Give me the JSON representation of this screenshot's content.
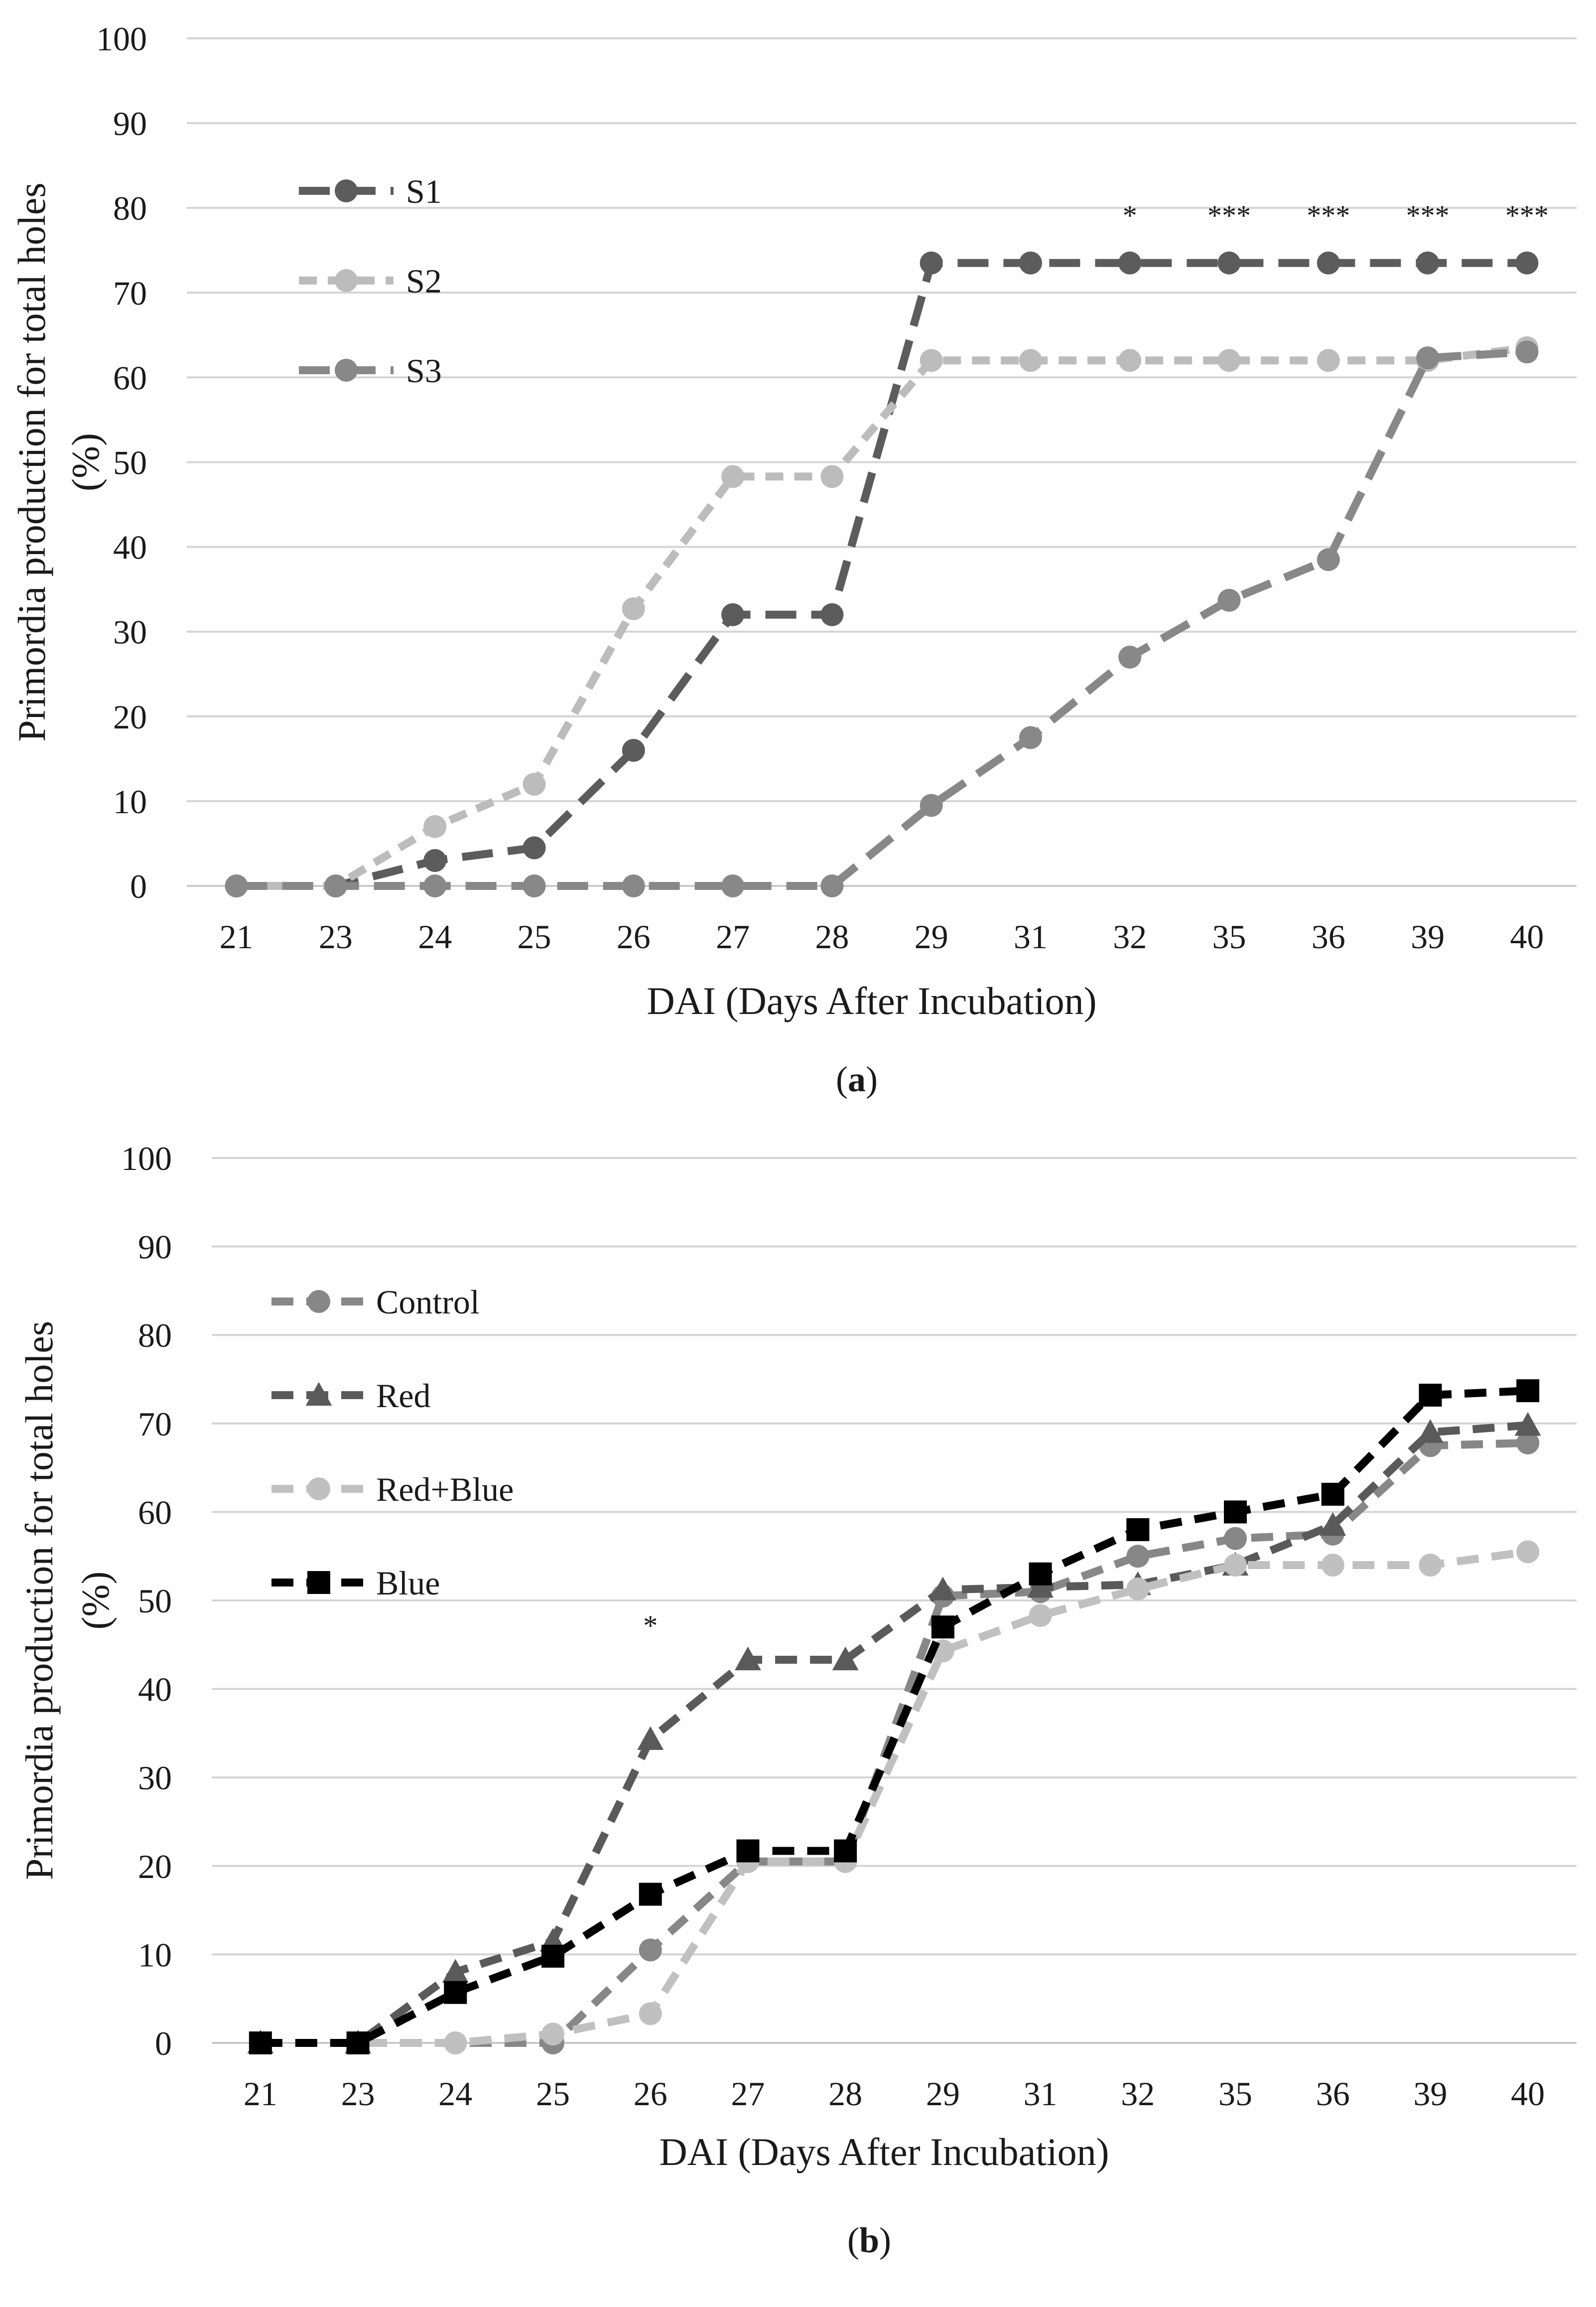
{
  "chart_data": [
    {
      "type": "line",
      "panel_label_open": "(",
      "panel_label": "a",
      "panel_label_close": ")",
      "categories": [
        "21",
        "23",
        "24",
        "25",
        "26",
        "27",
        "28",
        "29",
        "31",
        "32",
        "35",
        "36",
        "39",
        "40"
      ],
      "ylim": [
        0,
        100
      ],
      "yticks": [
        "0",
        "10",
        "20",
        "30",
        "40",
        "50",
        "60",
        "70",
        "80",
        "90",
        "100"
      ],
      "xlabel": "DAI (Days After Incubation)",
      "ylabel_line1": "Primordia production for total holes",
      "ylabel_line2": "(%)",
      "series": [
        {
          "name": "S1",
          "color": "#5c5c5c",
          "marker": "circle",
          "dash": "long",
          "values": [
            0,
            0,
            3,
            4.5,
            16,
            32,
            32,
            73.5,
            73.5,
            73.5,
            73.5,
            73.5,
            73.5,
            73.5
          ]
        },
        {
          "name": "S2",
          "color": "#bcbcbc",
          "marker": "circle",
          "dash": "short",
          "values": [
            0,
            0,
            7,
            12,
            32.7,
            48.3,
            48.3,
            62,
            62,
            62,
            62,
            62,
            62,
            63.5
          ]
        },
        {
          "name": "S3",
          "color": "#888888",
          "marker": "circle",
          "dash": "long",
          "values": [
            0,
            0,
            0,
            0,
            0,
            0,
            0,
            9.5,
            17.5,
            27,
            33.7,
            38.5,
            62.3,
            63
          ]
        }
      ],
      "significance": [
        {
          "category": "32",
          "text": "*"
        },
        {
          "category": "35",
          "text": "***"
        },
        {
          "category": "36",
          "text": "***"
        },
        {
          "category": "39",
          "text": "***"
        },
        {
          "category": "40",
          "text": "***"
        }
      ]
    },
    {
      "type": "line",
      "panel_label_open": "(",
      "panel_label": "b",
      "panel_label_close": ")",
      "categories": [
        "21",
        "23",
        "24",
        "25",
        "26",
        "27",
        "28",
        "29",
        "31",
        "32",
        "35",
        "36",
        "39",
        "40"
      ],
      "ylim": [
        0,
        100
      ],
      "yticks": [
        "0",
        "10",
        "20",
        "30",
        "40",
        "50",
        "60",
        "70",
        "80",
        "90",
        "100"
      ],
      "xlabel": "DAI (Days After Incubation)",
      "ylabel_line1": "Primordia production for total holes",
      "ylabel_line2": "(%)",
      "series": [
        {
          "name": "Control",
          "color": "#878787",
          "marker": "circle",
          "dash": "medium",
          "values": [
            0,
            0,
            0,
            0,
            10.5,
            20.5,
            20.5,
            50.5,
            51,
            55,
            57,
            57.5,
            67.5,
            67.8
          ]
        },
        {
          "name": "Red",
          "color": "#5a5a5a",
          "marker": "triangle",
          "dash": "medium",
          "values": [
            0,
            0,
            8,
            11.5,
            34.3,
            43.3,
            43.3,
            51.2,
            51.5,
            51.8,
            54,
            58.5,
            69,
            69.8
          ]
        },
        {
          "name": "Red+Blue",
          "color": "#c0c0c0",
          "marker": "circle",
          "dash": "medium",
          "values": [
            0,
            0,
            0,
            1,
            3.3,
            20.5,
            20.5,
            44.3,
            48.3,
            51.3,
            54,
            54,
            54,
            55.5
          ]
        },
        {
          "name": "Blue",
          "color": "#000000",
          "marker": "square",
          "dash": "medium",
          "values": [
            0,
            0,
            5.7,
            9.8,
            16.8,
            21.7,
            21.7,
            47,
            53,
            58,
            60,
            62,
            73.2,
            73.7
          ]
        }
      ],
      "significance": [
        {
          "category": "26",
          "text": "*"
        }
      ]
    }
  ]
}
